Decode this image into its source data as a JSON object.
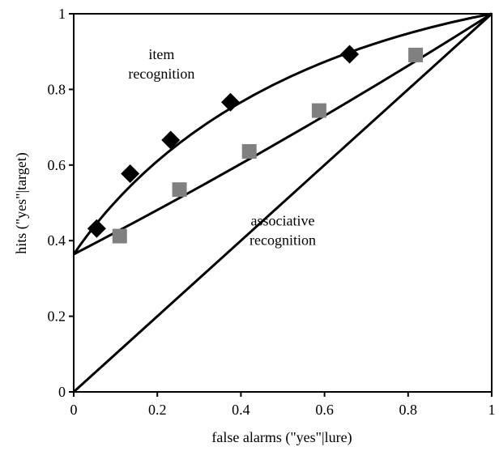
{
  "chart_data": {
    "type": "scatter",
    "title": "",
    "xlabel": "false alarms (\"yes\"|lure)",
    "ylabel": "hits (\"yes\"|target)",
    "xlim": [
      0,
      1
    ],
    "ylim": [
      0,
      1
    ],
    "x_ticks": [
      "0",
      "0.2",
      "0.4",
      "0.6",
      "0.8",
      "1"
    ],
    "y_ticks": [
      "0",
      "0.2",
      "0.4",
      "0.6",
      "0.8",
      "1"
    ],
    "grid": false,
    "series": [
      {
        "name": "item recognition",
        "marker": "diamond",
        "color": "#000000",
        "points": [
          {
            "x": 0.055,
            "y": 0.432
          },
          {
            "x": 0.135,
            "y": 0.577
          },
          {
            "x": 0.232,
            "y": 0.666
          },
          {
            "x": 0.375,
            "y": 0.766
          },
          {
            "x": 0.66,
            "y": 0.893
          }
        ]
      },
      {
        "name": "associative recognition",
        "marker": "square",
        "color": "#808080",
        "points": [
          {
            "x": 0.11,
            "y": 0.412
          },
          {
            "x": 0.253,
            "y": 0.535
          },
          {
            "x": 0.42,
            "y": 0.636
          },
          {
            "x": 0.587,
            "y": 0.744
          },
          {
            "x": 0.818,
            "y": 0.891
          }
        ]
      }
    ],
    "curves": [
      {
        "name": "item-curve",
        "start": [
          0,
          0.364
        ],
        "control": [
          0.3,
          0.85
        ],
        "end": [
          1,
          1
        ]
      },
      {
        "name": "associative-curve",
        "start": [
          0,
          0.364
        ],
        "control": [
          0.5,
          0.65
        ],
        "end": [
          1,
          1
        ]
      },
      {
        "name": "chance-diagonal",
        "start": [
          0,
          0
        ],
        "control": [
          0.5,
          0.5
        ],
        "end": [
          1,
          1
        ]
      }
    ],
    "annotations": [
      {
        "name": "item-annotation",
        "lines": [
          "item",
          "recognition"
        ],
        "x": 0.21,
        "y": 0.88
      },
      {
        "name": "associative-annotation",
        "lines": [
          "associative",
          "recognition"
        ],
        "x": 0.5,
        "y": 0.44
      }
    ]
  }
}
